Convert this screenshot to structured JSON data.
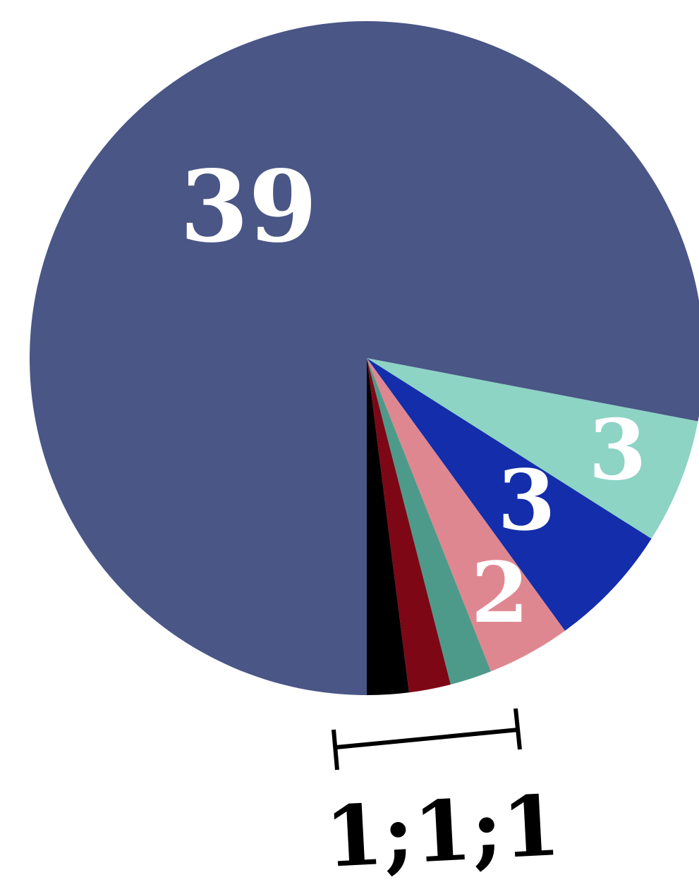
{
  "chart_data": {
    "type": "pie",
    "values": [
      39,
      3,
      3,
      2,
      1,
      1,
      1
    ],
    "colors": [
      "#4a5686",
      "#8dd4c5",
      "#142daa",
      "#df8790",
      "#4e9a8a",
      "#7e0716",
      "#000000"
    ],
    "labels": [
      "39",
      "3",
      "3",
      "2",
      "",
      "",
      ""
    ],
    "small_slices_label": "1;1;1"
  }
}
